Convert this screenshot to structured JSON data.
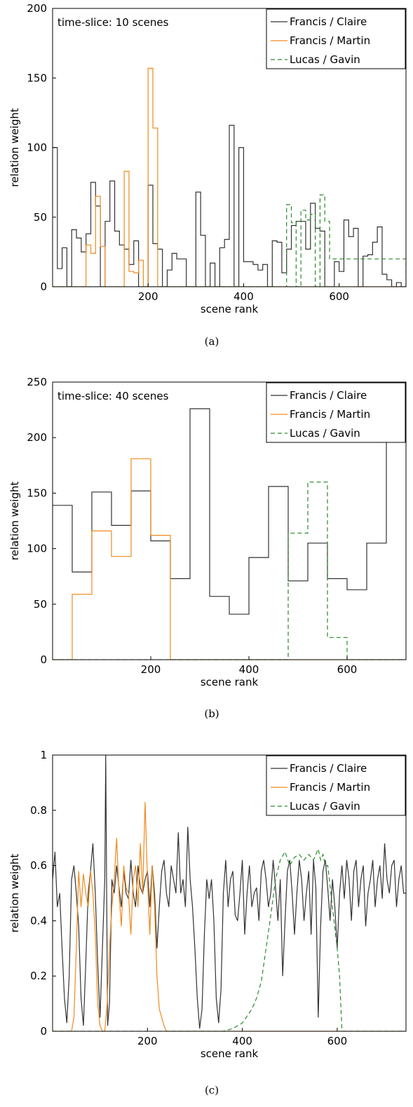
{
  "chart_data": [
    {
      "panel": "a",
      "type": "line",
      "caption": "(a)",
      "annotation": "time-slice: 10 scenes",
      "xlabel": "scene rank",
      "ylabel": "relation weight",
      "xlim": [
        0,
        740
      ],
      "ylim": [
        0,
        200
      ],
      "xticks": [
        200,
        400,
        600
      ],
      "yticks": [
        0,
        50,
        100,
        150,
        200
      ],
      "legend_position": "top-right",
      "series": [
        {
          "name": "Francis / Claire",
          "color": "#333333",
          "style": "solid",
          "x": [
            0,
            10,
            20,
            30,
            40,
            50,
            60,
            70,
            80,
            90,
            100,
            110,
            120,
            130,
            140,
            150,
            160,
            170,
            180,
            190,
            200,
            210,
            220,
            230,
            240,
            250,
            260,
            270,
            280,
            290,
            300,
            310,
            320,
            330,
            340,
            350,
            360,
            370,
            380,
            390,
            400,
            410,
            420,
            430,
            440,
            450,
            460,
            470,
            480,
            490,
            500,
            510,
            520,
            530,
            540,
            550,
            560,
            570,
            580,
            590,
            600,
            610,
            620,
            630,
            640,
            650,
            660,
            670,
            680,
            690,
            700,
            710,
            720,
            730
          ],
          "y": [
            100,
            13,
            28,
            0,
            41,
            35,
            25,
            38,
            75,
            58,
            0,
            47,
            76,
            40,
            30,
            27,
            16,
            33,
            0,
            0,
            73,
            31,
            27,
            0,
            12,
            24,
            20,
            20,
            0,
            0,
            68,
            37,
            0,
            17,
            0,
            28,
            34,
            116,
            0,
            100,
            18,
            18,
            16,
            12,
            16,
            0,
            33,
            32,
            10,
            27,
            44,
            47,
            47,
            27,
            60,
            42,
            40,
            0,
            0,
            18,
            11,
            48,
            36,
            42,
            0,
            22,
            23,
            32,
            43,
            9,
            5,
            0,
            3,
            0
          ]
        },
        {
          "name": "Francis / Martin",
          "color": "#f08a1c",
          "style": "solid",
          "x": [
            0,
            60,
            70,
            80,
            90,
            100,
            110,
            120,
            130,
            140,
            150,
            160,
            170,
            180,
            190,
            200,
            210,
            220,
            740
          ],
          "y": [
            0,
            0,
            30,
            24,
            65,
            29,
            0,
            0,
            0,
            0,
            83,
            11,
            10,
            19,
            0,
            157,
            114,
            0,
            0
          ]
        },
        {
          "name": "Lucas / Gavin",
          "color": "#2a8a2a",
          "style": "dashed",
          "x": [
            0,
            480,
            490,
            500,
            510,
            520,
            530,
            540,
            550,
            560,
            570,
            580,
            740
          ],
          "y": [
            0,
            0,
            59,
            46,
            0,
            55,
            48,
            52,
            0,
            66,
            47,
            20,
            0
          ]
        }
      ]
    },
    {
      "panel": "b",
      "type": "line",
      "caption": "(b)",
      "annotation": "time-slice: 40 scenes",
      "xlabel": "scene rank",
      "ylabel": "relation weight",
      "xlim": [
        0,
        720
      ],
      "ylim": [
        0,
        250
      ],
      "xticks": [
        200,
        400,
        600
      ],
      "yticks": [
        0,
        50,
        100,
        150,
        200,
        250
      ],
      "legend_position": "top-right",
      "series": [
        {
          "name": "Francis / Claire",
          "color": "#333333",
          "style": "solid",
          "x": [
            0,
            40,
            80,
            120,
            160,
            200,
            240,
            280,
            320,
            360,
            400,
            440,
            480,
            520,
            560,
            600,
            640,
            680,
            720
          ],
          "y": [
            139,
            79,
            151,
            121,
            152,
            107,
            73,
            226,
            57,
            41,
            92,
            156,
            71,
            105,
            73,
            63,
            105,
            198,
            198
          ]
        },
        {
          "name": "Francis / Martin",
          "color": "#f08a1c",
          "style": "solid",
          "x": [
            0,
            40,
            80,
            120,
            160,
            200,
            240,
            720
          ],
          "y": [
            0,
            59,
            116,
            93,
            181,
            112,
            0,
            0
          ]
        },
        {
          "name": "Lucas / Gavin",
          "color": "#2a8a2a",
          "style": "dashed",
          "x": [
            0,
            480,
            520,
            560,
            600,
            720
          ],
          "y": [
            0,
            114,
            160,
            20,
            0,
            0
          ]
        }
      ]
    },
    {
      "panel": "c",
      "type": "line",
      "caption": "(c)",
      "xlabel": "scene rank",
      "ylabel": "relation weight",
      "xlim": [
        0,
        745
      ],
      "ylim": [
        0,
        1
      ],
      "xticks": [
        200,
        400,
        600
      ],
      "yticks": [
        0,
        0.2,
        0.4,
        0.6,
        0.8,
        1
      ],
      "legend_position": "top-right",
      "series": [
        {
          "name": "Francis / Claire",
          "color": "#333333",
          "style": "solid",
          "x": [
            0,
            5,
            10,
            15,
            20,
            25,
            30,
            35,
            40,
            45,
            50,
            55,
            60,
            65,
            70,
            75,
            80,
            85,
            90,
            95,
            100,
            105,
            110,
            112,
            114,
            116,
            120,
            125,
            130,
            135,
            140,
            145,
            150,
            155,
            160,
            165,
            170,
            175,
            180,
            185,
            190,
            195,
            200,
            205,
            210,
            215,
            220,
            225,
            230,
            235,
            240,
            245,
            250,
            255,
            260,
            265,
            270,
            275,
            280,
            285,
            290,
            295,
            300,
            305,
            310,
            315,
            320,
            325,
            330,
            335,
            340,
            345,
            350,
            355,
            360,
            365,
            370,
            375,
            380,
            385,
            390,
            395,
            400,
            405,
            410,
            415,
            420,
            425,
            430,
            435,
            440,
            445,
            450,
            455,
            460,
            465,
            470,
            475,
            480,
            485,
            490,
            495,
            500,
            505,
            510,
            515,
            520,
            525,
            530,
            535,
            540,
            545,
            550,
            555,
            560,
            565,
            570,
            575,
            580,
            585,
            590,
            595,
            600,
            605,
            610,
            615,
            620,
            625,
            630,
            635,
            640,
            645,
            650,
            655,
            660,
            665,
            670,
            675,
            680,
            685,
            690,
            695,
            700,
            705,
            710,
            715,
            720,
            725,
            730,
            735,
            740,
            745
          ],
          "y": [
            0.55,
            0.65,
            0.45,
            0.5,
            0.3,
            0.12,
            0.03,
            0.2,
            0.55,
            0.6,
            0.5,
            0.38,
            0.12,
            0.02,
            0.25,
            0.5,
            0.58,
            0.68,
            0.5,
            0.25,
            0.05,
            0.3,
            0.55,
            1.0,
            0.5,
            0.02,
            0.1,
            0.55,
            0.5,
            0.6,
            0.52,
            0.45,
            0.58,
            0.5,
            0.48,
            0.62,
            0.5,
            0.45,
            0.6,
            0.52,
            0.5,
            0.55,
            0.58,
            0.45,
            0.6,
            0.5,
            0.3,
            0.45,
            0.58,
            0.62,
            0.5,
            0.45,
            0.6,
            0.55,
            0.5,
            0.72,
            0.5,
            0.55,
            0.45,
            0.74,
            0.55,
            0.45,
            0.3,
            0.12,
            0.01,
            0.08,
            0.35,
            0.55,
            0.48,
            0.55,
            0.4,
            0.12,
            0.03,
            0.15,
            0.5,
            0.62,
            0.45,
            0.55,
            0.58,
            0.42,
            0.4,
            0.5,
            0.62,
            0.35,
            0.5,
            0.6,
            0.45,
            0.5,
            0.52,
            0.4,
            0.58,
            0.62,
            0.55,
            0.45,
            0.5,
            0.62,
            0.52,
            0.4,
            0.55,
            0.2,
            0.4,
            0.58,
            0.62,
            0.5,
            0.35,
            0.5,
            0.62,
            0.55,
            0.4,
            0.5,
            0.58,
            0.35,
            0.62,
            0.52,
            0.05,
            0.38,
            0.58,
            0.62,
            0.52,
            0.4,
            0.55,
            0.45,
            0.3,
            0.5,
            0.6,
            0.48,
            0.62,
            0.55,
            0.4,
            0.58,
            0.62,
            0.45,
            0.55,
            0.6,
            0.38,
            0.5,
            0.55,
            0.62,
            0.45,
            0.55,
            0.6,
            0.48,
            0.68,
            0.55,
            0.5,
            0.6,
            0.62,
            0.45,
            0.55,
            0.6,
            0.5,
            0.5
          ]
        },
        {
          "name": "Francis / Martin",
          "color": "#f08a1c",
          "style": "solid",
          "x": [
            0,
            40,
            45,
            50,
            55,
            60,
            65,
            70,
            75,
            80,
            85,
            90,
            95,
            100,
            105,
            110,
            115,
            120,
            125,
            130,
            135,
            140,
            145,
            150,
            155,
            160,
            165,
            170,
            175,
            180,
            185,
            190,
            195,
            200,
            205,
            210,
            215,
            220,
            225,
            230,
            235,
            240,
            745
          ],
          "y": [
            0,
            0,
            0.05,
            0.3,
            0.58,
            0.45,
            0.57,
            0.5,
            0.45,
            0.58,
            0.5,
            0.35,
            0.1,
            0.02,
            0,
            0,
            0.1,
            0.3,
            0.45,
            0.55,
            0.7,
            0.5,
            0.38,
            0.6,
            0.52,
            0.5,
            0.35,
            0.55,
            0.6,
            0.45,
            0.68,
            0.5,
            0.83,
            0.55,
            0.35,
            0.6,
            0.45,
            0.2,
            0.08,
            0.05,
            0.02,
            0,
            0
          ]
        },
        {
          "name": "Lucas / Gavin",
          "color": "#2a8a2a",
          "style": "dashed",
          "x": [
            0,
            330,
            360,
            380,
            400,
            420,
            430,
            440,
            450,
            460,
            470,
            480,
            490,
            500,
            510,
            520,
            530,
            540,
            550,
            560,
            565,
            570,
            575,
            580,
            590,
            600,
            605,
            610,
            745
          ],
          "y": [
            0,
            0,
            0,
            0.01,
            0.03,
            0.08,
            0.12,
            0.18,
            0.3,
            0.42,
            0.55,
            0.62,
            0.65,
            0.6,
            0.63,
            0.64,
            0.62,
            0.64,
            0.62,
            0.66,
            0.62,
            0.64,
            0.6,
            0.6,
            0.45,
            0.3,
            0.2,
            0,
            0
          ]
        }
      ]
    }
  ]
}
